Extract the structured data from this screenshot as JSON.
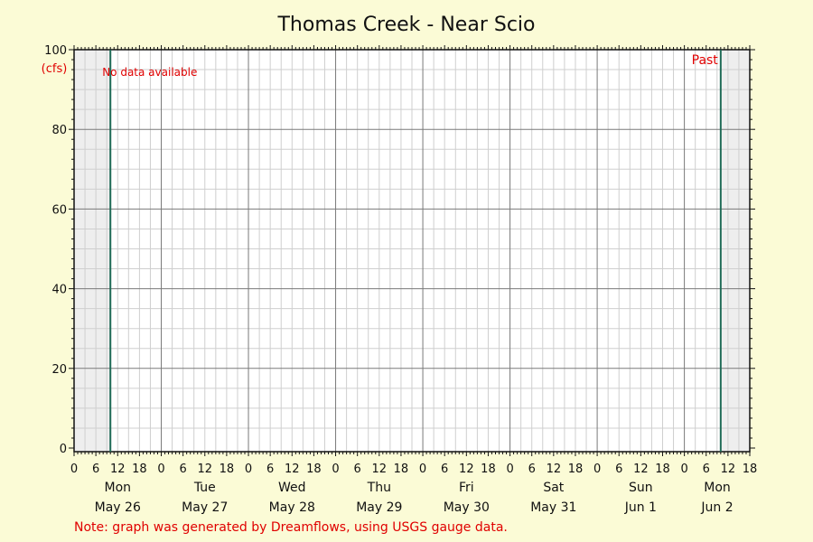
{
  "colors": {
    "background": "#fbfbd6",
    "plot_background": "#ffffff",
    "shaded_region": "#eeeeee",
    "marker_line": "#1f6b57",
    "annotation": "#e00000",
    "major_grid": "#7a7a7a",
    "minor_grid": "#cfcfcf"
  },
  "chart_data": {
    "type": "line",
    "title": "Thomas Creek - Near Scio",
    "ylabel": "(cfs)",
    "ylim": [
      0,
      100
    ],
    "yticks": [
      0,
      20,
      40,
      60,
      80,
      100
    ],
    "y_minor_step": 5,
    "x_hour_range": [
      0,
      186
    ],
    "x_hour_ticks": [
      0,
      6,
      12,
      18,
      24,
      30,
      36,
      42,
      48,
      54,
      60,
      66,
      72,
      78,
      84,
      90,
      96,
      102,
      108,
      114,
      120,
      126,
      132,
      138,
      144,
      150,
      156,
      162,
      168,
      174,
      180,
      186
    ],
    "x_hour_tick_labels": [
      "0",
      "6",
      "12",
      "18",
      "0",
      "6",
      "12",
      "18",
      "0",
      "6",
      "12",
      "18",
      "0",
      "6",
      "12",
      "18",
      "0",
      "6",
      "12",
      "18",
      "0",
      "6",
      "12",
      "18",
      "0",
      "6",
      "12",
      "18",
      "0",
      "6",
      "12",
      "18"
    ],
    "days": [
      {
        "weekday": "Mon",
        "date": "May 26"
      },
      {
        "weekday": "Tue",
        "date": "May 27"
      },
      {
        "weekday": "Wed",
        "date": "May 28"
      },
      {
        "weekday": "Thu",
        "date": "May 29"
      },
      {
        "weekday": "Fri",
        "date": "May 30"
      },
      {
        "weekday": "Sat",
        "date": "May 31"
      },
      {
        "weekday": "Sun",
        "date": "Jun 1"
      },
      {
        "weekday": "Mon",
        "date": "Jun 2"
      }
    ],
    "start_marker_hour": 10,
    "past_marker_hour": 178,
    "series": [],
    "grid": true,
    "annotations": {
      "no_data": "No data available",
      "past": "Past"
    }
  },
  "footer_note": "Note: graph was generated by Dreamflows, using USGS gauge data."
}
